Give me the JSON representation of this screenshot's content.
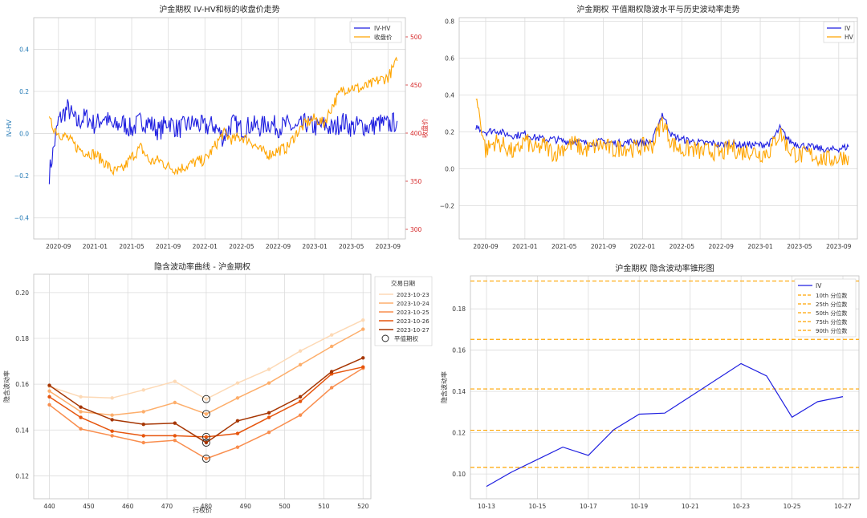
{
  "chart_data": [
    {
      "type": "line",
      "title": "沪金期权 IV-HV和标的收盘价走势",
      "ylabel": "IV-HV",
      "y2label": "收盘价",
      "x_ticks": [
        "2020-09",
        "2021-01",
        "2021-05",
        "2021-09",
        "2022-01",
        "2022-05",
        "2022-09",
        "2023-01",
        "2023-05",
        "2023-09"
      ],
      "ylim": [
        -0.5,
        0.55
      ],
      "y_ticks": [
        "0.4",
        "0.2",
        "0.0",
        "−0.2",
        "−0.4"
      ],
      "y2lim": [
        290,
        520
      ],
      "y2_ticks": [
        "500",
        "450",
        "400",
        "350",
        "300"
      ],
      "legend": [
        "IV-HV",
        "收盘价"
      ],
      "series": [
        {
          "name": "IV-HV",
          "axis": "left",
          "color": "#1f1fe0",
          "x": [
            "2020-08",
            "2020-09",
            "2020-10",
            "2020-11",
            "2020-12",
            "2021-01",
            "2021-02",
            "2021-03",
            "2021-04",
            "2021-05",
            "2021-06",
            "2021-07",
            "2021-08",
            "2021-09",
            "2021-10",
            "2021-11",
            "2021-12",
            "2022-01",
            "2022-02",
            "2022-03",
            "2022-04",
            "2022-05",
            "2022-06",
            "2022-07",
            "2022-08",
            "2022-09",
            "2022-10",
            "2022-11",
            "2022-12",
            "2023-01",
            "2023-02",
            "2023-03",
            "2023-04",
            "2023-05",
            "2023-06",
            "2023-07",
            "2023-08",
            "2023-09",
            "2023-10"
          ],
          "values": [
            -0.19,
            0.06,
            0.12,
            0.05,
            0.08,
            0.04,
            0.08,
            0.03,
            0.05,
            0.02,
            0.06,
            0.05,
            0.01,
            0.06,
            0.02,
            0.04,
            0.05,
            0.03,
            0.04,
            -0.02,
            0.05,
            0.02,
            0.04,
            0.03,
            0.05,
            0.03,
            0.04,
            0.02,
            0.05,
            0.03,
            0.04,
            0.02,
            0.06,
            0.03,
            0.04,
            0.03,
            0.05,
            0.04,
            0.06
          ]
        },
        {
          "name": "收盘价",
          "axis": "right",
          "color": "#ffa500",
          "x": [
            "2020-08",
            "2020-09",
            "2020-10",
            "2020-11",
            "2020-12",
            "2021-01",
            "2021-02",
            "2021-03",
            "2021-04",
            "2021-05",
            "2021-06",
            "2021-07",
            "2021-08",
            "2021-09",
            "2021-10",
            "2021-11",
            "2021-12",
            "2022-01",
            "2022-02",
            "2022-03",
            "2022-04",
            "2022-05",
            "2022-06",
            "2022-07",
            "2022-08",
            "2022-09",
            "2022-10",
            "2022-11",
            "2022-12",
            "2023-01",
            "2023-02",
            "2023-03",
            "2023-04",
            "2023-05",
            "2023-06",
            "2023-07",
            "2023-08",
            "2023-09",
            "2023-10"
          ],
          "values": [
            412,
            400,
            395,
            385,
            380,
            378,
            370,
            360,
            362,
            375,
            385,
            370,
            372,
            365,
            362,
            366,
            370,
            372,
            385,
            400,
            393,
            396,
            392,
            382,
            378,
            382,
            385,
            400,
            410,
            415,
            410,
            430,
            445,
            448,
            446,
            450,
            455,
            458,
            475
          ]
        }
      ]
    },
    {
      "type": "line",
      "title": "沪金期权 平值期权隐波水平与历史波动率走势",
      "x_ticks": [
        "2020-09",
        "2021-01",
        "2021-05",
        "2021-09",
        "2022-01",
        "2022-05",
        "2022-09",
        "2023-01",
        "2023-05",
        "2023-09"
      ],
      "ylim": [
        -0.38,
        0.82
      ],
      "y_ticks": [
        "0.8",
        "0.6",
        "0.4",
        "0.2",
        "0.0",
        "−0.2"
      ],
      "legend": [
        "IV",
        "HV"
      ],
      "series": [
        {
          "name": "IV",
          "color": "#1f1fe0",
          "x": [
            "2020-08",
            "2020-09",
            "2020-10",
            "2020-11",
            "2020-12",
            "2021-01",
            "2021-02",
            "2021-03",
            "2021-04",
            "2021-05",
            "2021-06",
            "2021-07",
            "2021-08",
            "2021-09",
            "2021-10",
            "2021-11",
            "2021-12",
            "2022-01",
            "2022-02",
            "2022-03",
            "2022-04",
            "2022-05",
            "2022-06",
            "2022-07",
            "2022-08",
            "2022-09",
            "2022-10",
            "2022-11",
            "2022-12",
            "2023-01",
            "2023-02",
            "2023-03",
            "2023-04",
            "2023-05",
            "2023-06",
            "2023-07",
            "2023-08",
            "2023-09",
            "2023-10"
          ],
          "values": [
            0.23,
            0.2,
            0.21,
            0.19,
            0.18,
            0.19,
            0.17,
            0.16,
            0.16,
            0.15,
            0.15,
            0.14,
            0.14,
            0.15,
            0.14,
            0.14,
            0.15,
            0.14,
            0.15,
            0.3,
            0.18,
            0.16,
            0.15,
            0.14,
            0.14,
            0.13,
            0.14,
            0.13,
            0.13,
            0.13,
            0.14,
            0.22,
            0.15,
            0.13,
            0.12,
            0.11,
            0.1,
            0.11,
            0.12
          ]
        },
        {
          "name": "HV",
          "color": "#ffa500",
          "x": [
            "2020-08",
            "2020-09",
            "2020-10",
            "2020-11",
            "2020-12",
            "2021-01",
            "2021-02",
            "2021-03",
            "2021-04",
            "2021-05",
            "2021-06",
            "2021-07",
            "2021-08",
            "2021-09",
            "2021-10",
            "2021-11",
            "2021-12",
            "2022-01",
            "2022-02",
            "2022-03",
            "2022-04",
            "2022-05",
            "2022-06",
            "2022-07",
            "2022-08",
            "2022-09",
            "2022-10",
            "2022-11",
            "2022-12",
            "2023-01",
            "2023-02",
            "2023-03",
            "2023-04",
            "2023-05",
            "2023-06",
            "2023-07",
            "2023-08",
            "2023-09",
            "2023-10"
          ],
          "values": [
            0.4,
            0.1,
            0.15,
            0.12,
            0.08,
            0.16,
            0.1,
            0.13,
            0.08,
            0.12,
            0.14,
            0.1,
            0.12,
            0.13,
            0.1,
            0.12,
            0.11,
            0.12,
            0.13,
            0.26,
            0.14,
            0.1,
            0.11,
            0.09,
            0.1,
            0.08,
            0.12,
            0.09,
            0.1,
            0.08,
            0.1,
            0.2,
            0.1,
            0.07,
            0.08,
            0.06,
            0.05,
            0.06,
            0.07
          ]
        }
      ]
    },
    {
      "type": "line",
      "title": "隐含波动率曲线 - 沪金期权",
      "xlabel": "行权价",
      "ylabel": "隐含波动率",
      "xlim": [
        436,
        522
      ],
      "x_ticks": [
        440,
        450,
        460,
        470,
        480,
        490,
        500,
        510,
        520
      ],
      "ylim": [
        0.11,
        0.208
      ],
      "y_ticks": [
        0.2,
        0.18,
        0.16,
        0.14,
        0.12
      ],
      "legend_title": "交易日期",
      "legend_atm": "平值期权",
      "strikes": [
        440,
        448,
        456,
        464,
        472,
        480,
        488,
        496,
        504,
        512,
        520
      ],
      "series": [
        {
          "name": "2023-10-23",
          "color": "#fdd9b5",
          "values": [
            0.159,
            0.1545,
            0.154,
            0.1575,
            0.1612,
            0.1535,
            0.1605,
            0.1665,
            0.1745,
            0.1815,
            0.188
          ]
        },
        {
          "name": "2023-10-24",
          "color": "#fdae6b",
          "values": [
            0.157,
            0.148,
            0.1465,
            0.148,
            0.152,
            0.147,
            0.154,
            0.1605,
            0.1685,
            0.1765,
            0.184
          ]
        },
        {
          "name": "2023-10-25",
          "color": "#f98e4e",
          "values": [
            0.151,
            0.1405,
            0.1375,
            0.1345,
            0.1355,
            0.1275,
            0.1325,
            0.139,
            0.1465,
            0.1585,
            0.167
          ]
        },
        {
          "name": "2023-10-26",
          "color": "#e6550d",
          "values": [
            0.1545,
            0.1455,
            0.1395,
            0.1375,
            0.1375,
            0.137,
            0.1385,
            0.1455,
            0.1525,
            0.1645,
            0.1675
          ]
        },
        {
          "name": "2023-10-27",
          "color": "#a63603",
          "values": [
            0.1595,
            0.15,
            0.1445,
            0.1425,
            0.143,
            0.1345,
            0.144,
            0.1475,
            0.1545,
            0.1655,
            0.1715
          ]
        }
      ],
      "atm": {
        "strike": 480,
        "values": [
          0.1535,
          0.147,
          0.1275,
          0.137,
          0.1345
        ]
      }
    },
    {
      "type": "line",
      "title": "沪金期权 隐含波动率锥形图",
      "ylabel": "隐含波动率",
      "x": [
        "10-13",
        "10-14",
        "10-15",
        "10-16",
        "10-17",
        "10-18",
        "10-19",
        "10-20",
        "10-21",
        "10-22",
        "10-23",
        "10-24",
        "10-25",
        "10-26",
        "10-27"
      ],
      "x_ticks": [
        "10-13",
        "10-15",
        "10-17",
        "10-19",
        "10-21",
        "10-23",
        "10-25",
        "10-27"
      ],
      "ylim": [
        0.088,
        0.196
      ],
      "y_ticks": [
        0.18,
        0.16,
        0.14,
        0.12,
        0.1
      ],
      "series": [
        {
          "name": "IV",
          "color": "#1f1fe0",
          "values": [
            0.094,
            0.101,
            0.107,
            0.113,
            0.109,
            0.1215,
            0.129,
            0.1295,
            0.1375,
            0.1455,
            0.1535,
            0.1475,
            0.1275,
            0.135,
            0.1375
          ]
        }
      ],
      "quantiles": [
        {
          "name": "10th 分位数",
          "value": 0.1032
        },
        {
          "name": "25th 分位数",
          "value": 0.1212
        },
        {
          "name": "50th 分位数",
          "value": 0.1412
        },
        {
          "name": "75th 分位数",
          "value": 0.1652
        },
        {
          "name": "90th 分位数",
          "value": 0.1935
        }
      ],
      "quantile_color": "#ffa500"
    }
  ]
}
